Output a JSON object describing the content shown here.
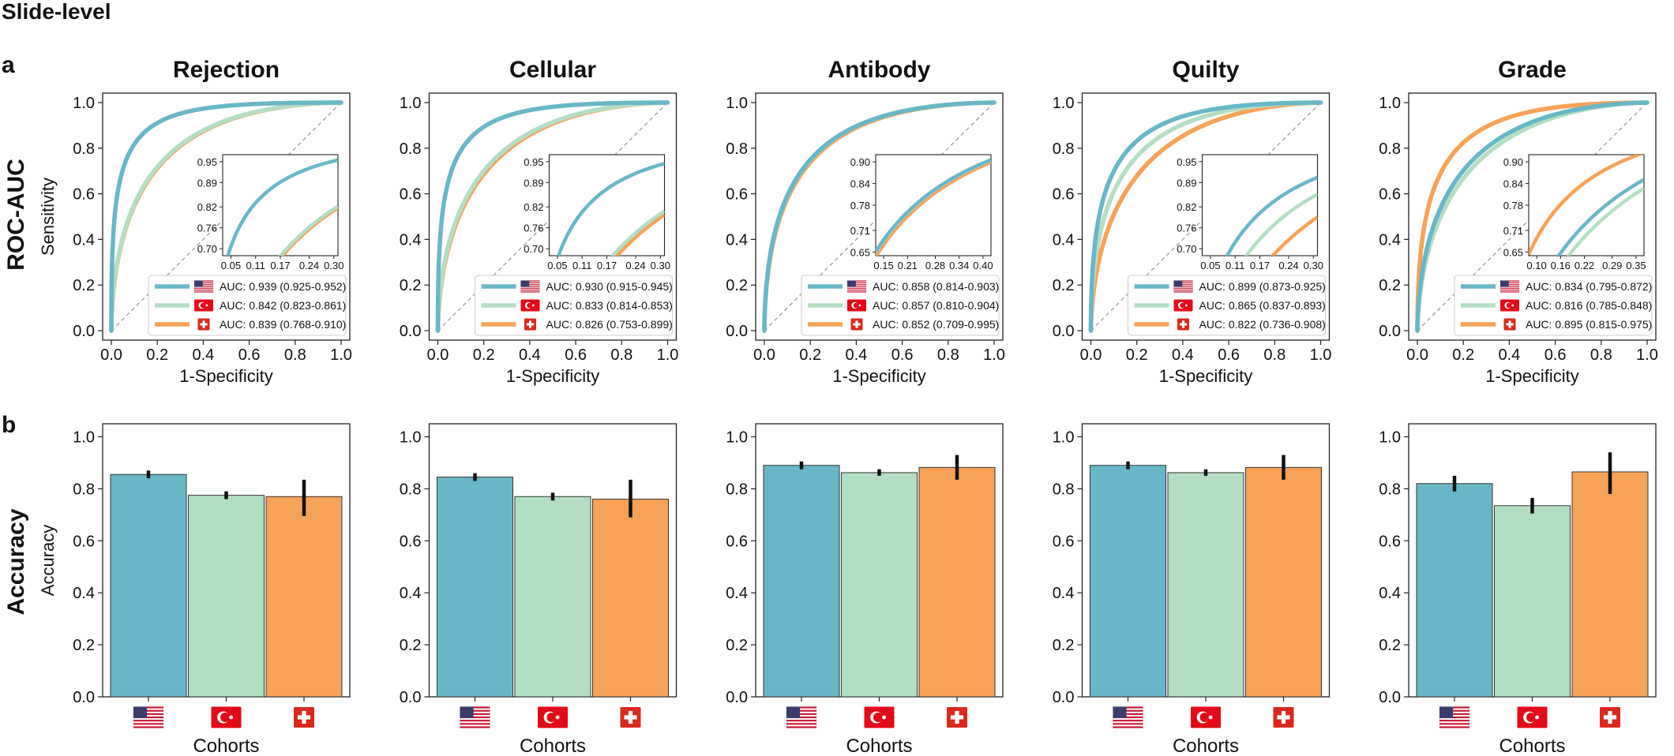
{
  "figure": {
    "title": "Slide-level",
    "panel_a_label": "a",
    "panel_b_label": "b",
    "row_a_label": "ROC-AUC",
    "row_b_label": "Accuracy"
  },
  "colors": {
    "usa": "#68b7c8",
    "turkey": "#b3dec3",
    "swiss": "#f6a257",
    "diagonal": "#999999",
    "axis": "#222222"
  },
  "cohorts": [
    {
      "key": "usa",
      "flag": "us-flag-icon"
    },
    {
      "key": "turkey",
      "flag": "turkey-flag-icon"
    },
    {
      "key": "swiss",
      "flag": "swiss-flag-icon"
    }
  ],
  "chart_data": [
    {
      "type": "line",
      "title": "Rejection",
      "xlabel": "1-Specificity",
      "ylabel": "Sensitivity",
      "xlim": [
        0,
        1
      ],
      "ylim": [
        0,
        1
      ],
      "xticks": [
        "0.0",
        "0.2",
        "0.4",
        "0.6",
        "0.8",
        "1.0"
      ],
      "yticks": [
        "0.0",
        "0.2",
        "0.4",
        "0.6",
        "0.8",
        "1.0"
      ],
      "legend_position": "lower-right",
      "series": [
        {
          "name": "AUC: 0.939 (0.925-0.952)",
          "auc": 0.939,
          "cohort": "usa"
        },
        {
          "name": "AUC: 0.842 (0.823-0.861)",
          "auc": 0.842,
          "cohort": "turkey"
        },
        {
          "name": "AUC: 0.839 (0.768-0.910)",
          "auc": 0.839,
          "cohort": "swiss"
        }
      ],
      "inset": {
        "xlim": [
          0.03,
          0.31
        ],
        "ylim": [
          0.68,
          0.97
        ],
        "xticks": [
          "0.05",
          "0.11",
          "0.17",
          "0.24",
          "0.30"
        ],
        "yticks": [
          "0.70",
          "0.76",
          "0.82",
          "0.89",
          "0.95"
        ]
      }
    },
    {
      "type": "line",
      "title": "Cellular",
      "xlabel": "1-Specificity",
      "ylabel": "",
      "xlim": [
        0,
        1
      ],
      "ylim": [
        0,
        1
      ],
      "xticks": [
        "0.0",
        "0.2",
        "0.4",
        "0.6",
        "0.8",
        "1.0"
      ],
      "yticks": [
        "0.0",
        "0.2",
        "0.4",
        "0.6",
        "0.8",
        "1.0"
      ],
      "legend_position": "lower-right",
      "series": [
        {
          "name": "AUC: 0.930 (0.915-0.945)",
          "auc": 0.93,
          "cohort": "usa"
        },
        {
          "name": "AUC: 0.833 (0.814-0.853)",
          "auc": 0.833,
          "cohort": "turkey"
        },
        {
          "name": "AUC: 0.826 (0.753-0.899)",
          "auc": 0.826,
          "cohort": "swiss"
        }
      ],
      "inset": {
        "xlim": [
          0.03,
          0.31
        ],
        "ylim": [
          0.68,
          0.97
        ],
        "xticks": [
          "0.05",
          "0.11",
          "0.17",
          "0.24",
          "0.30"
        ],
        "yticks": [
          "0.70",
          "0.76",
          "0.82",
          "0.89",
          "0.95"
        ]
      }
    },
    {
      "type": "line",
      "title": "Antibody",
      "xlabel": "1-Specificity",
      "ylabel": "",
      "xlim": [
        0,
        1
      ],
      "ylim": [
        0,
        1
      ],
      "xticks": [
        "0.0",
        "0.2",
        "0.4",
        "0.6",
        "0.8",
        "1.0"
      ],
      "yticks": [
        "0.0",
        "0.2",
        "0.4",
        "0.6",
        "0.8",
        "1.0"
      ],
      "legend_position": "lower-right",
      "series": [
        {
          "name": "AUC: 0.858 (0.814-0.903)",
          "auc": 0.858,
          "cohort": "usa"
        },
        {
          "name": "AUC: 0.857 (0.810-0.904)",
          "auc": 0.857,
          "cohort": "turkey"
        },
        {
          "name": "AUC: 0.852 (0.709-0.995)",
          "auc": 0.852,
          "cohort": "swiss"
        }
      ],
      "inset": {
        "xlim": [
          0.13,
          0.42
        ],
        "ylim": [
          0.64,
          0.92
        ],
        "xticks": [
          "0.15",
          "0.21",
          "0.28",
          "0.34",
          "0.40"
        ],
        "yticks": [
          "0.65",
          "0.71",
          "0.78",
          "0.84",
          "0.90"
        ]
      }
    },
    {
      "type": "line",
      "title": "Quilty",
      "xlabel": "1-Specificity",
      "ylabel": "",
      "xlim": [
        0,
        1
      ],
      "ylim": [
        0,
        1
      ],
      "xticks": [
        "0.0",
        "0.2",
        "0.4",
        "0.6",
        "0.8",
        "1.0"
      ],
      "yticks": [
        "0.0",
        "0.2",
        "0.4",
        "0.6",
        "0.8",
        "1.0"
      ],
      "legend_position": "lower-right",
      "series": [
        {
          "name": "AUC: 0.899 (0.873-0.925)",
          "auc": 0.899,
          "cohort": "usa"
        },
        {
          "name": "AUC: 0.865 (0.837-0.893)",
          "auc": 0.865,
          "cohort": "turkey"
        },
        {
          "name": "AUC: 0.822 (0.736-0.908)",
          "auc": 0.822,
          "cohort": "swiss"
        }
      ],
      "inset": {
        "xlim": [
          0.03,
          0.31
        ],
        "ylim": [
          0.68,
          0.97
        ],
        "xticks": [
          "0.05",
          "0.11",
          "0.17",
          "0.24",
          "0.30"
        ],
        "yticks": [
          "0.70",
          "0.76",
          "0.82",
          "0.89",
          "0.95"
        ]
      }
    },
    {
      "type": "line",
      "title": "Grade",
      "xlabel": "1-Specificity",
      "ylabel": "",
      "xlim": [
        0,
        1
      ],
      "ylim": [
        0,
        1
      ],
      "xticks": [
        "0.0",
        "0.2",
        "0.4",
        "0.6",
        "0.8",
        "1.0"
      ],
      "yticks": [
        "0.0",
        "0.2",
        "0.4",
        "0.6",
        "0.8",
        "1.0"
      ],
      "legend_position": "lower-right",
      "series": [
        {
          "name": "AUC: 0.834 (0.795-0.872)",
          "auc": 0.834,
          "cohort": "usa"
        },
        {
          "name": "AUC: 0.816 (0.785-0.848)",
          "auc": 0.816,
          "cohort": "turkey"
        },
        {
          "name": "AUC: 0.895 (0.815-0.975)",
          "auc": 0.895,
          "cohort": "swiss"
        }
      ],
      "inset": {
        "xlim": [
          0.08,
          0.37
        ],
        "ylim": [
          0.64,
          0.92
        ],
        "xticks": [
          "0.10",
          "0.16",
          "0.22",
          "0.29",
          "0.35"
        ],
        "yticks": [
          "0.65",
          "0.71",
          "0.78",
          "0.84",
          "0.90"
        ]
      }
    },
    {
      "type": "bar",
      "panel": "Rejection",
      "categories": [
        "usa",
        "turkey",
        "swiss"
      ],
      "values": [
        0.855,
        0.775,
        0.77
      ],
      "errors": [
        [
          0.84,
          0.87
        ],
        [
          0.76,
          0.79
        ],
        [
          0.695,
          0.835
        ]
      ],
      "xlabel": "Cohorts",
      "ylabel": "Accuracy",
      "ylim": [
        0,
        1.05
      ],
      "yticks": [
        "0.0",
        "0.2",
        "0.4",
        "0.6",
        "0.8",
        "1.0"
      ]
    },
    {
      "type": "bar",
      "panel": "Cellular",
      "categories": [
        "usa",
        "turkey",
        "swiss"
      ],
      "values": [
        0.845,
        0.77,
        0.76
      ],
      "errors": [
        [
          0.83,
          0.86
        ],
        [
          0.755,
          0.785
        ],
        [
          0.69,
          0.835
        ]
      ],
      "xlabel": "Cohorts",
      "ylabel": "",
      "ylim": [
        0,
        1.05
      ],
      "yticks": [
        "0.0",
        "0.2",
        "0.4",
        "0.6",
        "0.8",
        "1.0"
      ]
    },
    {
      "type": "bar",
      "panel": "Antibody",
      "categories": [
        "usa",
        "turkey",
        "swiss"
      ],
      "values": [
        0.89,
        0.862,
        0.882
      ],
      "errors": [
        [
          0.875,
          0.905
        ],
        [
          0.85,
          0.875
        ],
        [
          0.835,
          0.93
        ]
      ],
      "xlabel": "Cohorts",
      "ylabel": "",
      "ylim": [
        0,
        1.05
      ],
      "yticks": [
        "0.0",
        "0.2",
        "0.4",
        "0.6",
        "0.8",
        "1.0"
      ]
    },
    {
      "type": "bar",
      "panel": "Quilty",
      "categories": [
        "usa",
        "turkey",
        "swiss"
      ],
      "values": [
        0.89,
        0.862,
        0.882
      ],
      "errors": [
        [
          0.875,
          0.905
        ],
        [
          0.85,
          0.875
        ],
        [
          0.835,
          0.93
        ]
      ],
      "xlabel": "Cohorts",
      "ylabel": "",
      "ylim": [
        0,
        1.05
      ],
      "yticks": [
        "0.0",
        "0.2",
        "0.4",
        "0.6",
        "0.8",
        "1.0"
      ]
    },
    {
      "type": "bar",
      "panel": "Grade",
      "categories": [
        "usa",
        "turkey",
        "swiss"
      ],
      "values": [
        0.82,
        0.735,
        0.865
      ],
      "errors": [
        [
          0.79,
          0.85
        ],
        [
          0.705,
          0.765
        ],
        [
          0.78,
          0.94
        ]
      ],
      "xlabel": "Cohorts",
      "ylabel": "",
      "ylim": [
        0,
        1.05
      ],
      "yticks": [
        "0.0",
        "0.2",
        "0.4",
        "0.6",
        "0.8",
        "1.0"
      ]
    }
  ]
}
